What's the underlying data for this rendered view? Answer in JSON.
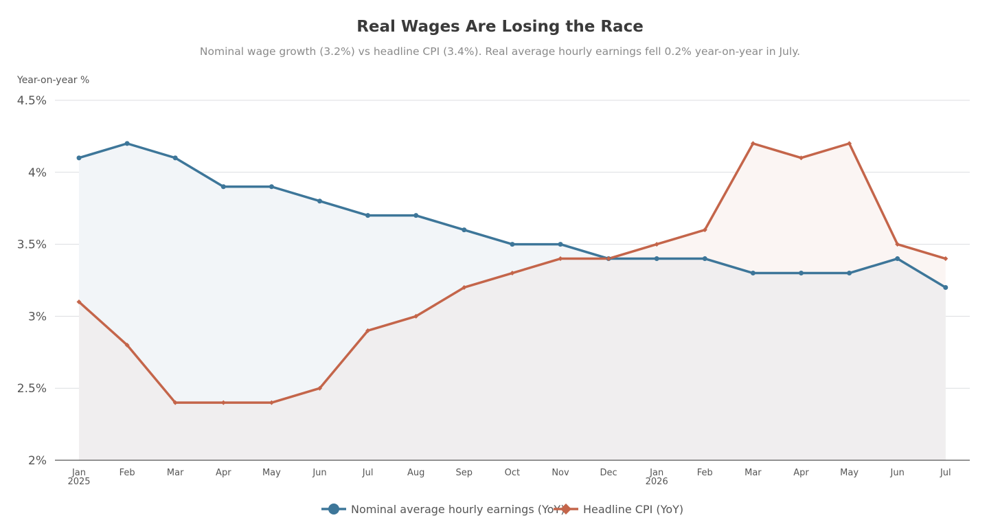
{
  "chart_data": {
    "type": "line",
    "title": "Real Wages Are Losing the Race",
    "subtitle": "Nominal wage growth (3.2%) vs headline CPI (3.4%). Real average hourly earnings fell 0.2% year-on-year in July.",
    "ylabel": "Year-on-year %",
    "xlabel": "",
    "ylim": [
      2,
      4.5
    ],
    "yticks": [
      2,
      2.5,
      3,
      3.5,
      4,
      4.5
    ],
    "ytick_labels": [
      "2%",
      "2.5%",
      "3%",
      "3.5%",
      "4%",
      "4.5%"
    ],
    "grid": true,
    "legend_position": "bottom-center",
    "categories": [
      [
        "Jan",
        "2025"
      ],
      [
        "Feb"
      ],
      [
        "Mar"
      ],
      [
        "Apr"
      ],
      [
        "May"
      ],
      [
        "Jun"
      ],
      [
        "Jul"
      ],
      [
        "Aug"
      ],
      [
        "Sep"
      ],
      [
        "Oct"
      ],
      [
        "Nov"
      ],
      [
        "Dec"
      ],
      [
        "Jan",
        "2026"
      ],
      [
        "Feb"
      ],
      [
        "Mar"
      ],
      [
        "Apr"
      ],
      [
        "May"
      ],
      [
        "Jun"
      ],
      [
        "Jul"
      ]
    ],
    "series": [
      {
        "name": "Nominal average hourly earnings (YoY)",
        "color": "#3d7699",
        "fill": "#f2f5f8",
        "marker": "circle",
        "values": [
          4.1,
          4.2,
          4.1,
          3.9,
          3.9,
          3.8,
          3.7,
          3.7,
          3.6,
          3.5,
          3.5,
          3.4,
          3.4,
          3.4,
          3.3,
          3.3,
          3.3,
          3.4,
          3.2
        ]
      },
      {
        "name": "Headline CPI (YoY)",
        "color": "#c4654a",
        "fill": "#fbf5f3",
        "marker": "diamond",
        "values": [
          3.1,
          2.8,
          2.4,
          2.4,
          2.4,
          2.5,
          2.9,
          3.0,
          3.2,
          3.3,
          3.4,
          3.4,
          3.5,
          3.6,
          4.2,
          4.1,
          4.2,
          3.5,
          3.4
        ]
      }
    ],
    "overlap_fill": "#f0eeef",
    "gridline_color": "#dcdde0",
    "axis_color": "#555555"
  }
}
